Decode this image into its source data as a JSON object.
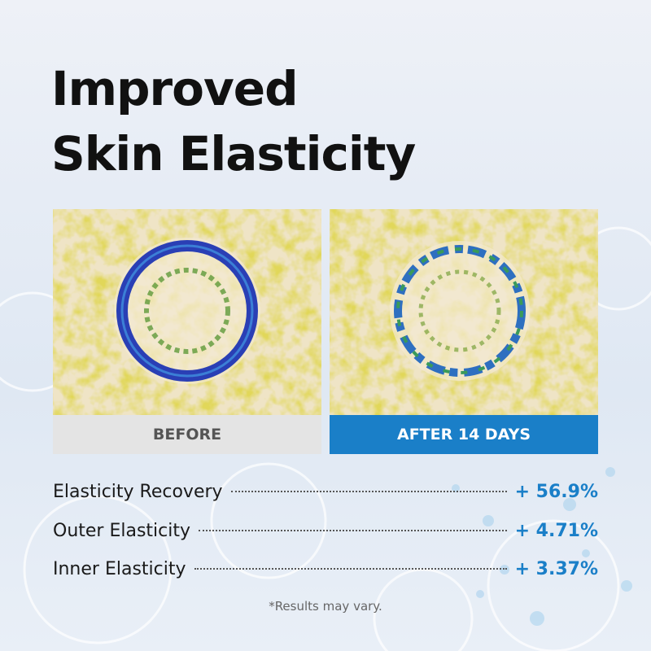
{
  "header": {
    "title": [
      "Improved",
      "Skin Elasticity"
    ]
  },
  "panels": [
    {
      "label": "BEFORE"
    },
    {
      "label": "AFTER 14 DAYS"
    }
  ],
  "stats": [
    {
      "label": "Elasticity Recovery",
      "value": "+ 56.9%"
    },
    {
      "label": "Outer Elasticity",
      "value": "+ 4.71%"
    },
    {
      "label": "Inner Elasticity",
      "value": "+ 3.37%"
    }
  ],
  "footnote": "*Results may vary."
}
